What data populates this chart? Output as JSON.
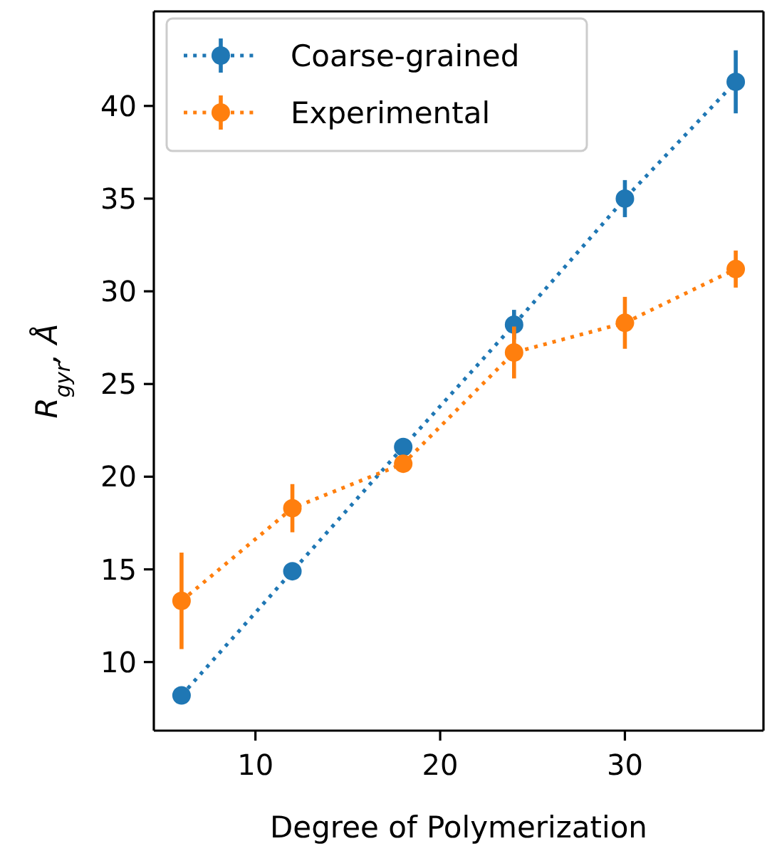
{
  "chart_data": {
    "type": "line",
    "xlabel": "Degree of Polymerization",
    "ylabel": "R$_{gyr}$, Å",
    "xlim": [
      4.5,
      37.5
    ],
    "xticks": [
      10,
      20,
      30
    ],
    "ylim": [
      6.3,
      45.1
    ],
    "yticks": [
      10,
      15,
      20,
      25,
      30,
      35,
      40
    ],
    "legend": "top left",
    "marker": "circle",
    "line_style": "dotted",
    "grid": false,
    "series": [
      {
        "name": "Coarse-grained",
        "color": "#1f77b4",
        "x": [
          6,
          12,
          18,
          24,
          30,
          36
        ],
        "values": [
          8.2,
          14.9,
          21.6,
          28.2,
          35.0,
          41.3
        ],
        "errors": [
          null,
          null,
          0.4,
          0.8,
          1.0,
          1.7
        ]
      },
      {
        "name": "Experimental",
        "color": "#ff7f0e",
        "x": [
          6,
          12,
          18,
          24,
          30,
          36
        ],
        "values": [
          13.3,
          18.3,
          20.7,
          26.7,
          28.3,
          31.2
        ],
        "errors": [
          2.6,
          1.3,
          0.3,
          1.4,
          1.4,
          1.0
        ]
      }
    ]
  }
}
